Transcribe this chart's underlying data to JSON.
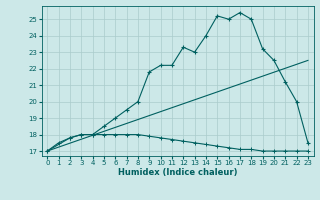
{
  "xlabel": "Humidex (Indice chaleur)",
  "xlim": [
    -0.5,
    23.5
  ],
  "ylim": [
    16.7,
    25.8
  ],
  "xticks": [
    0,
    1,
    2,
    3,
    4,
    5,
    6,
    7,
    8,
    9,
    10,
    11,
    12,
    13,
    14,
    15,
    16,
    17,
    18,
    19,
    20,
    21,
    22,
    23
  ],
  "yticks": [
    17,
    18,
    19,
    20,
    21,
    22,
    23,
    24,
    25
  ],
  "bg_color": "#cce8e8",
  "grid_color": "#aacccc",
  "line_color": "#006060",
  "line1": {
    "x": [
      0,
      1,
      2,
      3,
      4,
      5,
      6,
      7,
      8,
      9,
      10,
      11,
      12,
      13,
      14,
      15,
      16,
      17,
      18,
      19,
      20,
      21,
      22,
      23
    ],
    "y": [
      17.0,
      17.5,
      17.8,
      18.0,
      18.0,
      18.0,
      18.0,
      18.0,
      18.0,
      17.9,
      17.8,
      17.7,
      17.6,
      17.5,
      17.4,
      17.3,
      17.2,
      17.1,
      17.1,
      17.0,
      17.0,
      17.0,
      17.0,
      17.0
    ]
  },
  "line2": {
    "x": [
      0,
      23
    ],
    "y": [
      17.0,
      22.5
    ]
  },
  "line3": {
    "x": [
      0,
      2,
      3,
      4,
      5,
      6,
      7,
      8,
      9,
      10,
      11,
      12,
      13,
      14,
      15,
      16,
      17,
      18,
      19,
      20,
      21,
      22,
      23
    ],
    "y": [
      17.0,
      17.8,
      18.0,
      18.0,
      18.5,
      19.0,
      19.5,
      20.0,
      21.8,
      22.2,
      22.2,
      23.3,
      23.0,
      24.0,
      25.2,
      25.0,
      25.4,
      25.0,
      23.2,
      22.5,
      21.2,
      20.0,
      17.5
    ]
  }
}
